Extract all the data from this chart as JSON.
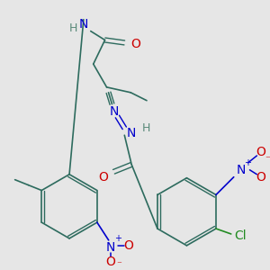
{
  "bg_color": "#e6e6e6",
  "C": "#2d6b5e",
  "O": "#cc0000",
  "N": "#0000cc",
  "Cl": "#228b22",
  "H": "#5a8a7a"
}
